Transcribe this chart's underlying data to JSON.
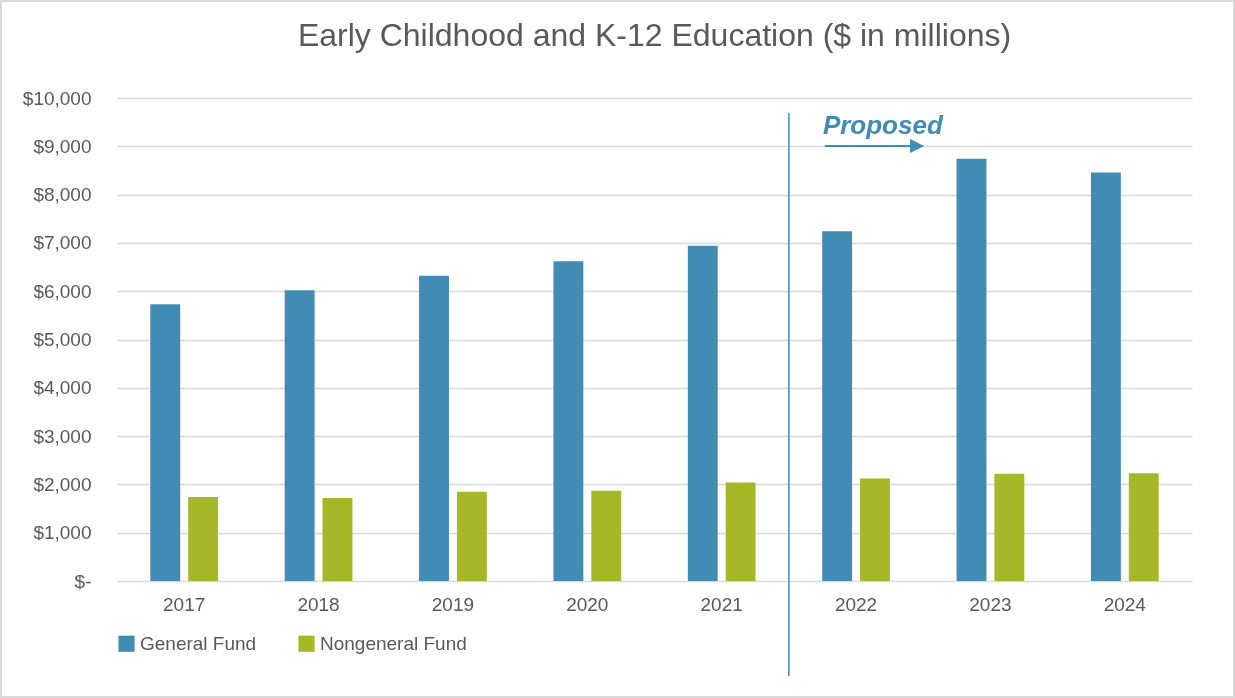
{
  "chart_data": {
    "type": "bar",
    "title": "Early Childhood and K-12 Education ($ in millions)",
    "categories": [
      "2017",
      "2018",
      "2019",
      "2020",
      "2021",
      "2022",
      "2023",
      "2024"
    ],
    "series": [
      {
        "name": "General Fund",
        "color": "#428bb5",
        "values": [
          5730,
          6020,
          6320,
          6620,
          6940,
          7240,
          8740,
          8460
        ]
      },
      {
        "name": "Nongeneral Fund",
        "color": "#a6b828",
        "values": [
          1740,
          1720,
          1850,
          1870,
          2040,
          2120,
          2220,
          2230
        ]
      }
    ],
    "ylim": [
      0,
      10000
    ],
    "yticks": [
      {
        "value": 0,
        "label": "$-"
      },
      {
        "value": 1000,
        "label": "$1,000"
      },
      {
        "value": 2000,
        "label": "$2,000"
      },
      {
        "value": 3000,
        "label": "$3,000"
      },
      {
        "value": 4000,
        "label": "$4,000"
      },
      {
        "value": 5000,
        "label": "$5,000"
      },
      {
        "value": 6000,
        "label": "$6,000"
      },
      {
        "value": 7000,
        "label": "$7,000"
      },
      {
        "value": 8000,
        "label": "$8,000"
      },
      {
        "value": 9000,
        "label": "$9,000"
      },
      {
        "value": 10000,
        "label": "$10,000"
      }
    ],
    "ref_lines": [
      {
        "axis": "x",
        "value": "2022",
        "color": "#428bb5"
      }
    ],
    "annotations": [
      "Proposed"
    ],
    "grid": "y",
    "legend": "bottom"
  }
}
